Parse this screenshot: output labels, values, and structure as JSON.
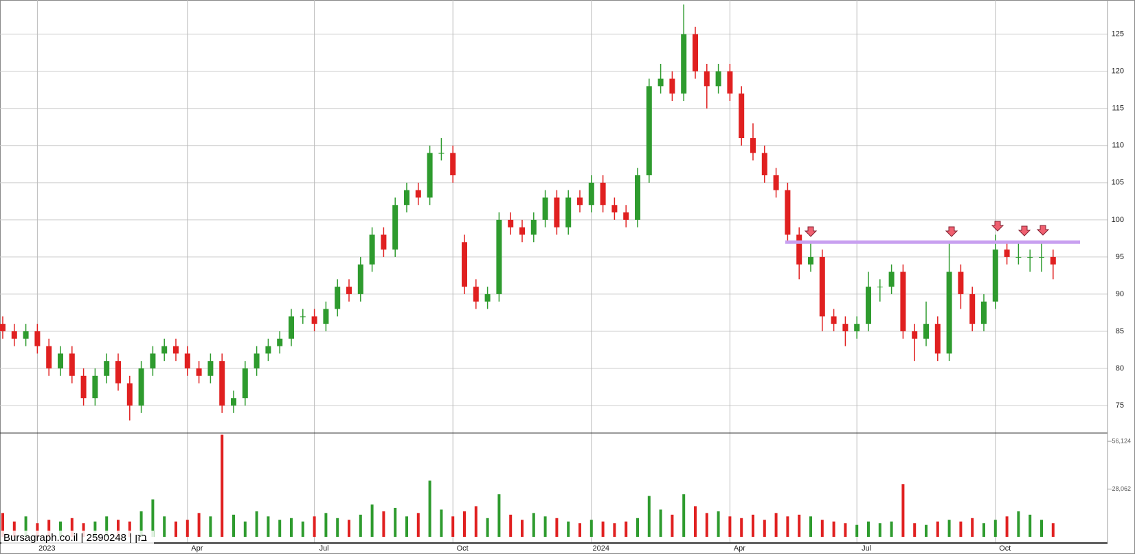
{
  "chart_data": {
    "type": "candlestick",
    "watermark": "Bursagraph.co.il | 2590248 | בזן",
    "categories": [
      null,
      null,
      null,
      "2023",
      null,
      null,
      null,
      null,
      null,
      null,
      null,
      null,
      null,
      null,
      null,
      null,
      "Apr",
      null,
      null,
      null,
      null,
      null,
      null,
      null,
      null,
      null,
      null,
      "Jul",
      null,
      null,
      null,
      null,
      null,
      null,
      null,
      null,
      null,
      null,
      null,
      "Oct",
      null,
      null,
      null,
      null,
      null,
      null,
      null,
      null,
      null,
      null,
      null,
      "2024",
      null,
      null,
      null,
      null,
      null,
      null,
      null,
      null,
      null,
      null,
      null,
      "Apr",
      null,
      null,
      null,
      null,
      null,
      null,
      null,
      null,
      null,
      null,
      "Jul",
      null,
      null,
      null,
      null,
      null,
      null,
      null,
      null,
      null,
      null,
      null,
      "Oct",
      null,
      null,
      null,
      null,
      null
    ],
    "open": [
      86,
      85,
      84,
      85,
      83,
      80,
      82,
      79,
      76,
      79,
      81,
      78,
      75,
      80,
      82,
      83,
      82,
      80,
      79,
      81,
      75,
      76,
      80,
      82,
      83,
      84,
      87,
      87,
      86,
      88,
      91,
      90,
      94,
      98,
      96,
      102,
      104,
      103,
      109,
      109,
      97,
      91,
      89,
      90,
      100,
      99,
      98,
      100,
      103,
      99,
      103,
      102,
      105,
      102,
      101,
      100,
      106,
      118,
      119,
      117,
      125,
      120,
      118,
      120,
      117,
      111,
      109,
      106,
      104,
      98,
      94,
      95,
      87,
      86,
      85,
      86,
      91,
      91,
      93,
      85,
      84,
      86,
      82,
      93,
      90,
      86,
      89,
      96,
      95,
      95,
      95,
      95
    ],
    "high": [
      87,
      86,
      86,
      86,
      84,
      83,
      83,
      80,
      80,
      82,
      82,
      79,
      81,
      83,
      84,
      84,
      83,
      81,
      82,
      82,
      77,
      81,
      83,
      84,
      85,
      88,
      88,
      88,
      89,
      92,
      92,
      95,
      99,
      99,
      103,
      105,
      105,
      110,
      111,
      110,
      98,
      92,
      91,
      101,
      101,
      100,
      101,
      104,
      104,
      104,
      104,
      106,
      106,
      103,
      102,
      107,
      119,
      121,
      120,
      129,
      126,
      121,
      121,
      121,
      118,
      113,
      110,
      107,
      105,
      99,
      97,
      96,
      88,
      87,
      87,
      93,
      92,
      94,
      94,
      86,
      89,
      87,
      97,
      94,
      91,
      90,
      98,
      97,
      97,
      96,
      97,
      96
    ],
    "low": [
      84,
      83,
      83,
      82,
      79,
      79,
      78,
      75,
      75,
      78,
      77,
      73,
      74,
      79,
      81,
      81,
      79,
      78,
      78,
      74,
      74,
      75,
      79,
      81,
      82,
      83,
      86,
      85,
      85,
      87,
      89,
      89,
      93,
      95,
      95,
      101,
      102,
      102,
      108,
      105,
      90,
      88,
      88,
      89,
      98,
      97,
      97,
      99,
      98,
      98,
      101,
      101,
      101,
      100,
      99,
      99,
      105,
      117,
      116,
      116,
      119,
      115,
      117,
      116,
      110,
      108,
      105,
      103,
      97,
      92,
      93,
      85,
      85,
      83,
      84,
      85,
      89,
      90,
      84,
      81,
      83,
      81,
      81,
      88,
      85,
      85,
      88,
      94,
      94,
      93,
      93,
      92
    ],
    "close": [
      85,
      84,
      85,
      83,
      80,
      82,
      79,
      76,
      79,
      81,
      78,
      75,
      80,
      82,
      83,
      82,
      80,
      79,
      81,
      75,
      76,
      80,
      82,
      83,
      84,
      87,
      87,
      86,
      88,
      91,
      90,
      94,
      98,
      96,
      102,
      104,
      103,
      109,
      109,
      106,
      91,
      89,
      90,
      100,
      99,
      98,
      100,
      103,
      99,
      103,
      102,
      105,
      102,
      101,
      100,
      106,
      118,
      119,
      117,
      125,
      120,
      118,
      120,
      117,
      111,
      109,
      106,
      104,
      98,
      94,
      95,
      87,
      86,
      85,
      86,
      91,
      91,
      93,
      85,
      84,
      86,
      82,
      93,
      90,
      86,
      89,
      96,
      95,
      95,
      95,
      95,
      94
    ],
    "volume": [
      14000,
      9000,
      12000,
      8000,
      10000,
      9000,
      11000,
      8000,
      9000,
      12000,
      10000,
      9000,
      15000,
      22000,
      12000,
      9000,
      10000,
      14000,
      12000,
      60000,
      13000,
      9000,
      15000,
      12000,
      10000,
      11000,
      9000,
      12000,
      14000,
      11000,
      10000,
      13000,
      19000,
      15000,
      17000,
      12000,
      14000,
      33000,
      16000,
      12000,
      15000,
      18000,
      11000,
      25000,
      13000,
      10000,
      14000,
      12000,
      11000,
      9000,
      8000,
      10000,
      9000,
      8000,
      9000,
      11000,
      24000,
      16000,
      13000,
      25000,
      18000,
      14000,
      15000,
      12000,
      11000,
      13000,
      10000,
      14000,
      12000,
      13000,
      12000,
      10000,
      9000,
      8000,
      7000,
      9000,
      8000,
      9000,
      31000,
      8000,
      7000,
      9000,
      10000,
      9000,
      11000,
      8000,
      10000,
      12000,
      15000,
      13000,
      10000,
      8000
    ],
    "up_color": "#2e9b2e",
    "down_color": "#e02020",
    "ylim": [
      71.3,
      129.6
    ],
    "yticks": [
      75,
      80,
      85,
      90,
      95,
      100,
      105,
      110,
      115,
      120,
      125
    ],
    "volume_ylim": [
      0,
      61000
    ],
    "volume_ticks": [
      {
        "value": 28062,
        "label": "28,062"
      },
      {
        "value": 56124,
        "label": "56,124"
      }
    ],
    "resistance": 97,
    "resistance_color": "#c8a0f0",
    "grid": true
  }
}
